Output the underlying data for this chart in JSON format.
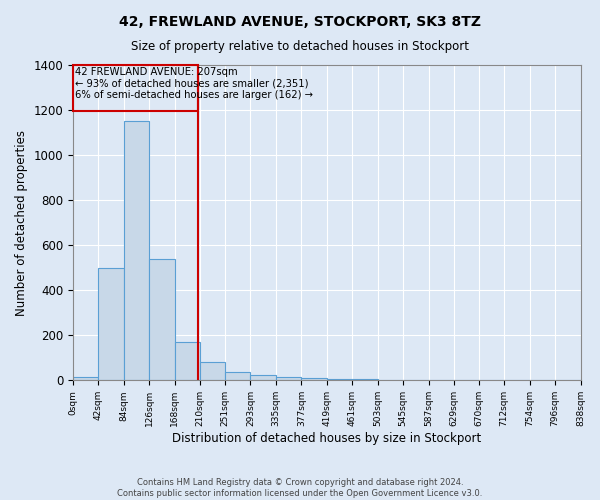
{
  "title1": "42, FREWLAND AVENUE, STOCKPORT, SK3 8TZ",
  "title2": "Size of property relative to detached houses in Stockport",
  "xlabel": "Distribution of detached houses by size in Stockport",
  "ylabel": "Number of detached properties",
  "footer1": "Contains HM Land Registry data © Crown copyright and database right 2024.",
  "footer2": "Contains public sector information licensed under the Open Government Licence v3.0.",
  "annotation_line1": "42 FREWLAND AVENUE: 207sqm",
  "annotation_line2": "← 93% of detached houses are smaller (2,351)",
  "annotation_line3": "6% of semi-detached houses are larger (162) →",
  "property_size": 207,
  "bin_edges": [
    0,
    42,
    84,
    126,
    168,
    210,
    251,
    293,
    335,
    377,
    419,
    461,
    503,
    545,
    587,
    629,
    670,
    712,
    754,
    796,
    838
  ],
  "bar_heights": [
    15,
    500,
    1150,
    540,
    170,
    80,
    35,
    25,
    15,
    10,
    8,
    5,
    3,
    2,
    2,
    1,
    1,
    1,
    0,
    1
  ],
  "bar_color": "#c8d8e8",
  "bar_edge_color": "#5a9fd4",
  "red_line_color": "#cc0000",
  "annotation_box_color": "#cc0000",
  "background_color": "#dde8f5",
  "grid_color": "#ffffff",
  "ylim": [
    0,
    1400
  ],
  "xlim": [
    0,
    838
  ]
}
